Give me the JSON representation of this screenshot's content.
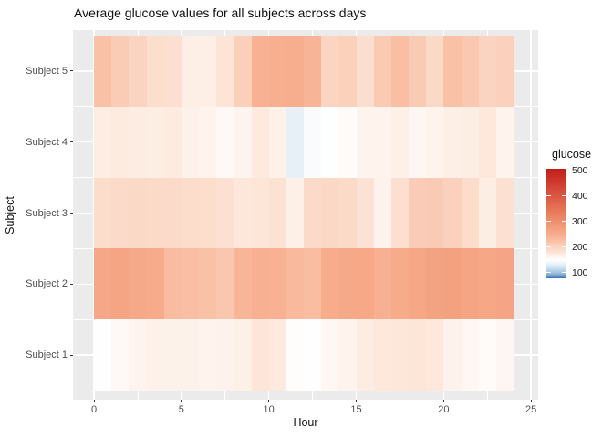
{
  "chart_data": {
    "type": "heatmap",
    "title": "Average glucose values for all subjects across days",
    "xlabel": "Hour",
    "ylabel": "Subject",
    "x_ticks": [
      0,
      5,
      10,
      15,
      20,
      25
    ],
    "x_minor_ticks": [
      2.5,
      7.5,
      12.5,
      17.5,
      22.5
    ],
    "hours": [
      0,
      1,
      2,
      3,
      4,
      5,
      6,
      7,
      8,
      9,
      10,
      11,
      12,
      13,
      14,
      15,
      16,
      17,
      18,
      19,
      20,
      21,
      22,
      23
    ],
    "x_tile_span": 1,
    "xlim": [
      -1.2,
      25.4
    ],
    "grid": "on",
    "legend_position": "right",
    "categories": [
      "Subject 1",
      "Subject 2",
      "Subject 3",
      "Subject 4",
      "Subject 5"
    ],
    "series": [
      {
        "name": "Subject 1",
        "values": [
          151,
          157,
          162,
          166,
          165,
          165,
          163,
          164,
          167,
          177,
          174,
          153,
          152,
          159,
          163,
          171,
          175,
          176,
          178,
          175,
          164,
          159,
          155,
          160
        ]
      },
      {
        "name": "Subject 2",
        "values": [
          260,
          264,
          257,
          253,
          229,
          226,
          222,
          216,
          239,
          245,
          243,
          233,
          228,
          251,
          257,
          259,
          246,
          254,
          261,
          267,
          271,
          264,
          261,
          263
        ]
      },
      {
        "name": "Subject 3",
        "values": [
          190,
          192,
          194,
          193,
          192,
          190,
          188,
          184,
          176,
          179,
          183,
          167,
          192,
          196,
          193,
          182,
          164,
          186,
          209,
          211,
          203,
          189,
          169,
          185
        ]
      },
      {
        "name": "Subject 4",
        "values": [
          170,
          172,
          171,
          169,
          172,
          166,
          163,
          157,
          162,
          174,
          166,
          132,
          146,
          150,
          155,
          162,
          163,
          167,
          160,
          163,
          168,
          169,
          175,
          163
        ]
      },
      {
        "name": "Subject 5",
        "values": [
          222,
          210,
          200,
          188,
          186,
          168,
          168,
          180,
          205,
          243,
          247,
          249,
          240,
          199,
          204,
          187,
          212,
          226,
          211,
          194,
          222,
          215,
          200,
          203
        ]
      }
    ],
    "legend": {
      "title": "glucose",
      "ticks": [
        500,
        400,
        300,
        200,
        100
      ],
      "notch_ticks": [
        400,
        300,
        200,
        100
      ],
      "range": [
        78,
        507
      ],
      "gradient_stops": [
        {
          "value": 507,
          "color": "#C11D1B"
        },
        {
          "value": 450,
          "color": "#CF3D2E"
        },
        {
          "value": 400,
          "color": "#DB5743"
        },
        {
          "value": 350,
          "color": "#E57456"
        },
        {
          "value": 300,
          "color": "#EF906E"
        },
        {
          "value": 250,
          "color": "#F7AD8D"
        },
        {
          "value": 225,
          "color": "#F9BFA4"
        },
        {
          "value": 200,
          "color": "#FBD4C1"
        },
        {
          "value": 175,
          "color": "#FDE8DB"
        },
        {
          "value": 152,
          "color": "#FEFEFE"
        },
        {
          "value": 148,
          "color": "#FCFDFE"
        },
        {
          "value": 125,
          "color": "#DEEAF4"
        },
        {
          "value": 100,
          "color": "#A0C3DE"
        },
        {
          "value": 88,
          "color": "#6F9FCB"
        },
        {
          "value": 78,
          "color": "#3E74B4"
        }
      ]
    }
  },
  "colors": {
    "panel_bg": "#EBEBEB",
    "grid": "#FFFFFF",
    "tick": "#333333",
    "tick_label": "#4D4D4D",
    "text": "#111111"
  }
}
